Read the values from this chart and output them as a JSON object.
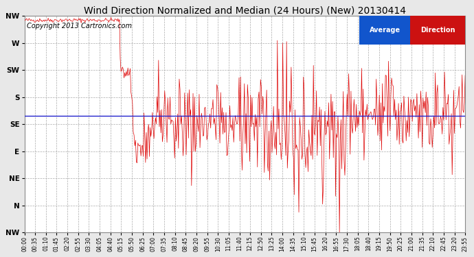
{
  "title": "Wind Direction Normalized and Median (24 Hours) (New) 20130414",
  "copyright": "Copyright 2013 Cartronics.com",
  "legend_blue_label": "Average",
  "legend_red_label": "Direction",
  "bg_color": "#e8e8e8",
  "plot_bg_color": "#ffffff",
  "grid_color": "#aaaaaa",
  "ytick_labels": [
    "NW",
    "W",
    "SW",
    "S",
    "SE",
    "E",
    "NE",
    "N",
    "NW"
  ],
  "ytick_values": [
    8,
    7,
    6,
    5,
    4,
    3,
    2,
    1,
    0
  ],
  "xtick_labels": [
    "00:00",
    "00:35",
    "01:10",
    "01:45",
    "02:20",
    "02:55",
    "03:30",
    "04:05",
    "04:40",
    "05:15",
    "05:50",
    "06:25",
    "07:00",
    "07:35",
    "08:10",
    "08:45",
    "09:20",
    "09:55",
    "10:30",
    "11:05",
    "11:40",
    "12:15",
    "12:50",
    "13:25",
    "14:00",
    "14:35",
    "15:10",
    "15:45",
    "16:20",
    "16:55",
    "17:30",
    "18:05",
    "18:40",
    "19:15",
    "19:50",
    "20:25",
    "21:00",
    "21:35",
    "22:10",
    "22:45",
    "23:20",
    "23:55"
  ],
  "title_fontsize": 10,
  "copyright_fontsize": 7,
  "axis_label_fontsize": 7.5,
  "red_line_color": "#dd0000",
  "blue_line_color": "#2222cc",
  "median_line_value": 4.3,
  "seed": 42,
  "n_points": 576
}
